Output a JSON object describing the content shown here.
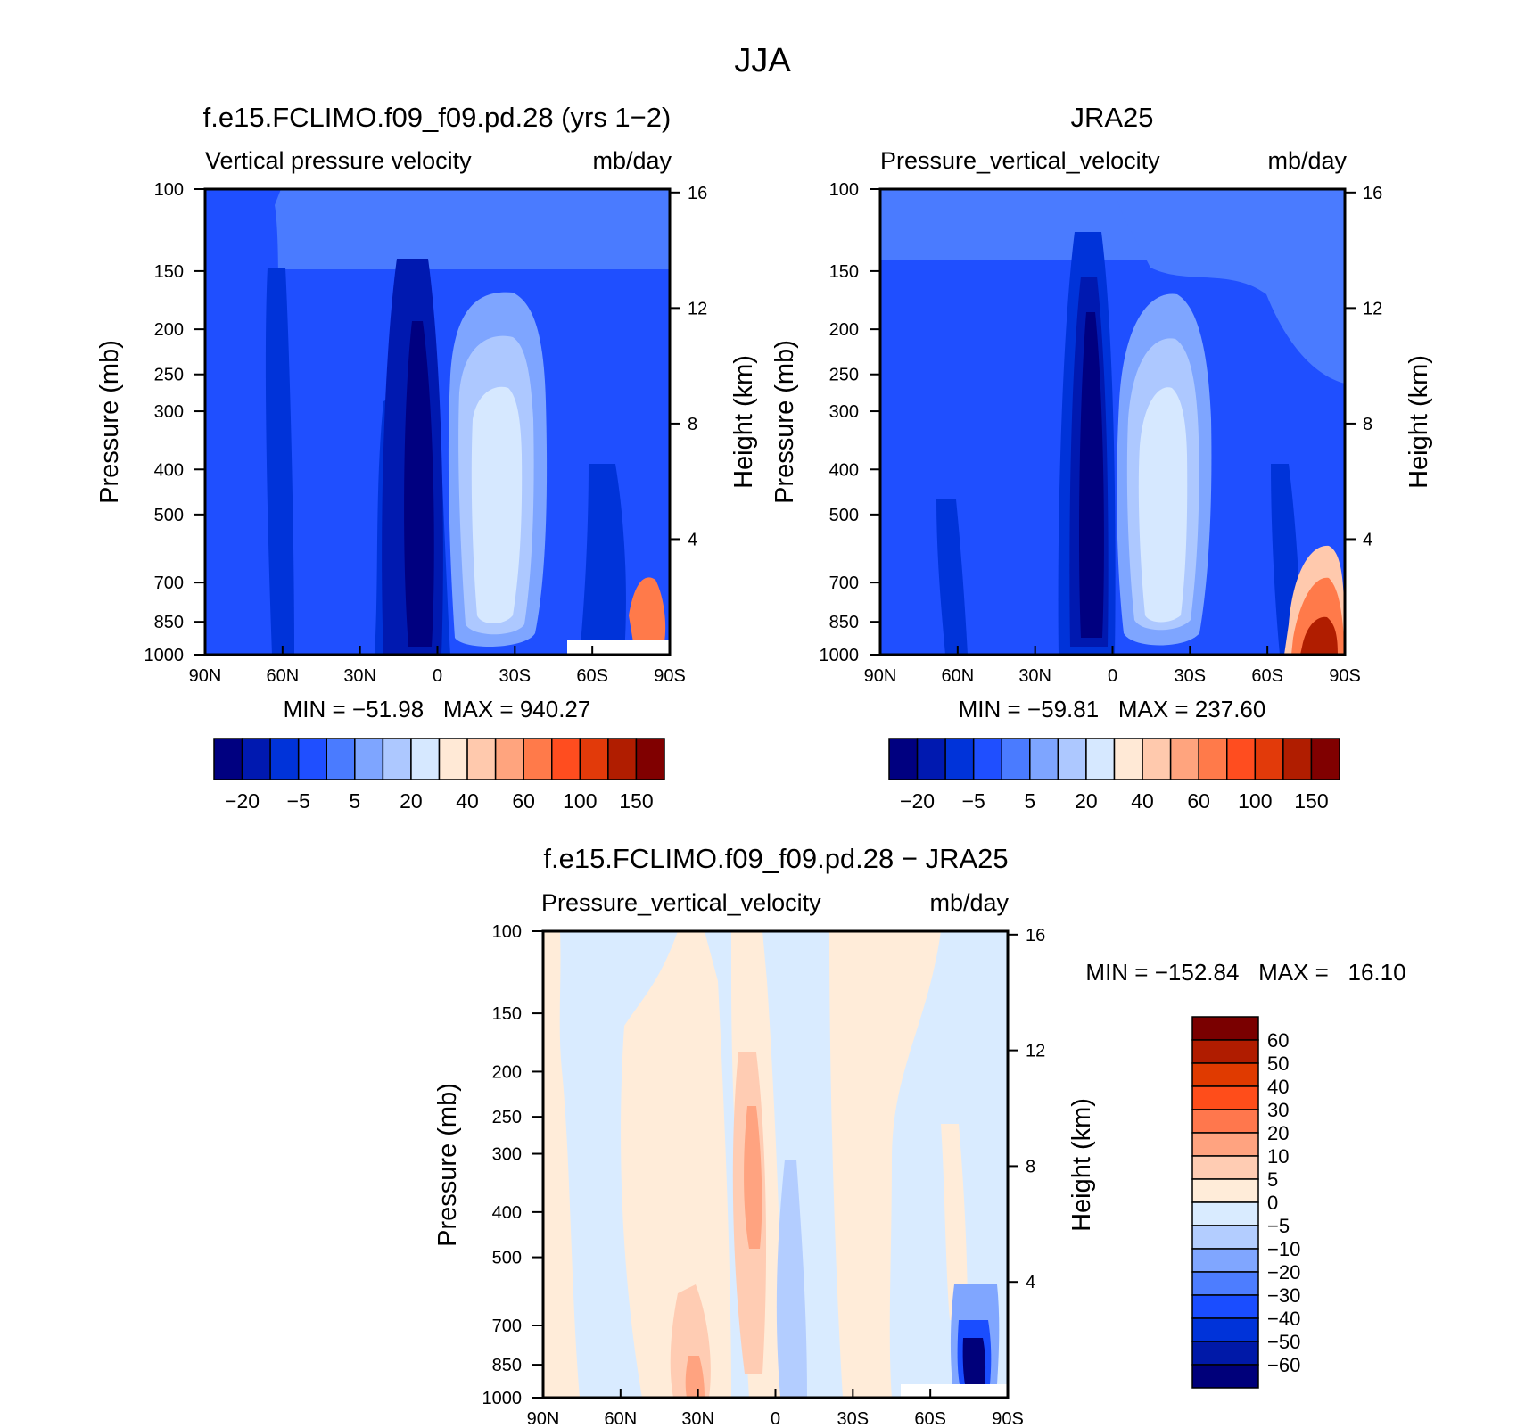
{
  "figure_title": "JJA",
  "colors": {
    "model_obs_levels": [
      "#000080",
      "#0019b0",
      "#0033d9",
      "#1f4fff",
      "#4a7bff",
      "#7ea5ff",
      "#adc8ff",
      "#d6e8ff",
      "#ffe9d6",
      "#ffc9ad",
      "#ffa47e",
      "#ff7a4a",
      "#ff4d1f",
      "#e23a0a",
      "#b01d00",
      "#800000"
    ],
    "diff_levels": [
      "#00007a",
      "#0019a8",
      "#0033d9",
      "#1a4dff",
      "#4d7dff",
      "#80a6ff",
      "#b3cdff",
      "#d9ebff",
      "#ffecd9",
      "#ffccb3",
      "#ffa380",
      "#ff774d",
      "#ff4d1a",
      "#e03a00",
      "#b01c00",
      "#7a0000"
    ]
  },
  "chart_data": [
    {
      "type": "heatmap",
      "title": "f.e15.FCLIMO.f09_f09.pd.28 (yrs 1−2)",
      "left_label": "Vertical pressure velocity",
      "right_label": "mb/day",
      "ylabel": "Pressure (mb)",
      "ylabel_right": "Height (km)",
      "x_ticks": [
        "90N",
        "60N",
        "30N",
        "0",
        "30S",
        "60S",
        "90S"
      ],
      "y_ticks": [
        "100",
        "150",
        "200",
        "250",
        "300",
        "400",
        "500",
        "700",
        "850",
        "1000"
      ],
      "height_ticks": [
        "16",
        "12",
        "8",
        "4"
      ],
      "min_max": "MIN = −51.98   MAX = 940.27",
      "colorbar_labels": [
        "−20",
        "−5",
        "5",
        "20",
        "40",
        "60",
        "100",
        "150"
      ],
      "xlim": [
        "90N",
        "90S"
      ],
      "ylim": [
        1000,
        100
      ]
    },
    {
      "type": "heatmap",
      "title": "JRA25",
      "left_label": "Pressure_vertical_velocity",
      "right_label": "mb/day",
      "ylabel": "Pressure (mb)",
      "ylabel_right": "Height (km)",
      "x_ticks": [
        "90N",
        "60N",
        "30N",
        "0",
        "30S",
        "60S",
        "90S"
      ],
      "y_ticks": [
        "100",
        "150",
        "200",
        "250",
        "300",
        "400",
        "500",
        "700",
        "850",
        "1000"
      ],
      "height_ticks": [
        "16",
        "12",
        "8",
        "4"
      ],
      "min_max": "MIN = −59.81   MAX = 237.60",
      "colorbar_labels": [
        "−20",
        "−5",
        "5",
        "20",
        "40",
        "60",
        "100",
        "150"
      ],
      "xlim": [
        "90N",
        "90S"
      ],
      "ylim": [
        1000,
        100
      ]
    },
    {
      "type": "heatmap",
      "title": "f.e15.FCLIMO.f09_f09.pd.28 − JRA25",
      "left_label": "Pressure_vertical_velocity",
      "right_label": "mb/day",
      "ylabel": "Pressure (mb)",
      "ylabel_right": "Height (km)",
      "x_ticks": [
        "90N",
        "60N",
        "30N",
        "0",
        "30S",
        "60S",
        "90S"
      ],
      "y_ticks": [
        "100",
        "150",
        "200",
        "250",
        "300",
        "400",
        "500",
        "700",
        "850",
        "1000"
      ],
      "height_ticks": [
        "16",
        "12",
        "8",
        "4"
      ],
      "min_max": "MIN = −152.84   MAX =   16.10",
      "colorbar_labels": [
        "60",
        "50",
        "40",
        "30",
        "20",
        "10",
        "5",
        "0",
        "−5",
        "−10",
        "−20",
        "−30",
        "−40",
        "−50",
        "−60"
      ],
      "xlim": [
        "90N",
        "90S"
      ],
      "ylim": [
        1000,
        100
      ]
    }
  ]
}
